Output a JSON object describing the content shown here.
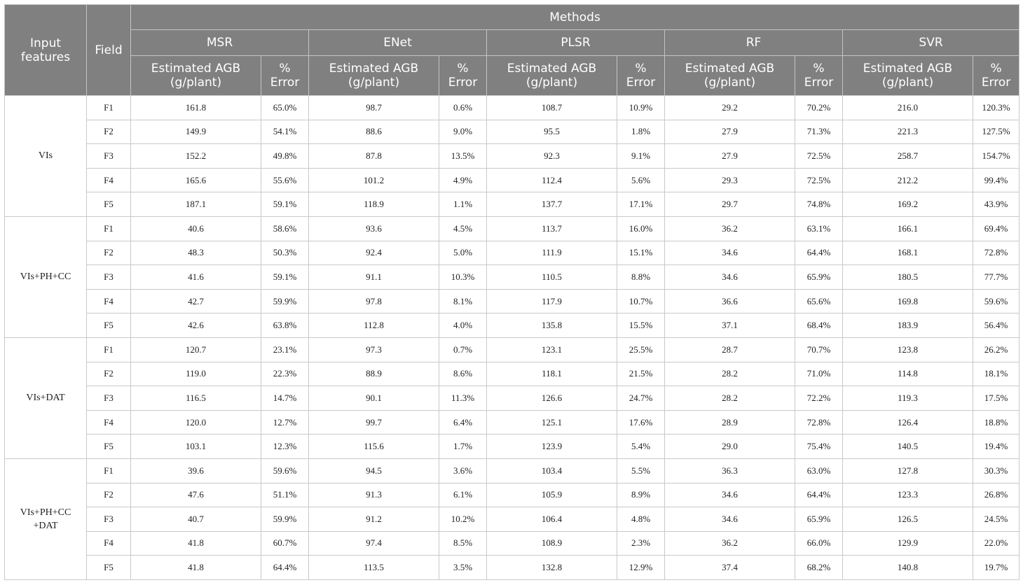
{
  "table": {
    "header": {
      "input_features": "Input\nfeatures",
      "field": "Field",
      "methods": "Methods",
      "method_names": [
        "MSR",
        "ENet",
        "PLSR",
        "RF",
        "SVR"
      ],
      "estimated_agb": "Estimated AGB\n(g/plant)",
      "pct_error": "%\nError"
    },
    "groups": [
      {
        "name": "VIs",
        "rows": [
          [
            "F1",
            "161.8",
            "65.0%",
            "98.7",
            "0.6%",
            "108.7",
            "10.9%",
            "29.2",
            "70.2%",
            "216.0",
            "120.3%"
          ],
          [
            "F2",
            "149.9",
            "54.1%",
            "88.6",
            "9.0%",
            "95.5",
            "1.8%",
            "27.9",
            "71.3%",
            "221.3",
            "127.5%"
          ],
          [
            "F3",
            "152.2",
            "49.8%",
            "87.8",
            "13.5%",
            "92.3",
            "9.1%",
            "27.9",
            "72.5%",
            "258.7",
            "154.7%"
          ],
          [
            "F4",
            "165.6",
            "55.6%",
            "101.2",
            "4.9%",
            "112.4",
            "5.6%",
            "29.3",
            "72.5%",
            "212.2",
            "99.4%"
          ],
          [
            "F5",
            "187.1",
            "59.1%",
            "118.9",
            "1.1%",
            "137.7",
            "17.1%",
            "29.7",
            "74.8%",
            "169.2",
            "43.9%"
          ]
        ]
      },
      {
        "name": "VIs+PH+CC",
        "rows": [
          [
            "F1",
            "40.6",
            "58.6%",
            "93.6",
            "4.5%",
            "113.7",
            "16.0%",
            "36.2",
            "63.1%",
            "166.1",
            "69.4%"
          ],
          [
            "F2",
            "48.3",
            "50.3%",
            "92.4",
            "5.0%",
            "111.9",
            "15.1%",
            "34.6",
            "64.4%",
            "168.1",
            "72.8%"
          ],
          [
            "F3",
            "41.6",
            "59.1%",
            "91.1",
            "10.3%",
            "110.5",
            "8.8%",
            "34.6",
            "65.9%",
            "180.5",
            "77.7%"
          ],
          [
            "F4",
            "42.7",
            "59.9%",
            "97.8",
            "8.1%",
            "117.9",
            "10.7%",
            "36.6",
            "65.6%",
            "169.8",
            "59.6%"
          ],
          [
            "F5",
            "42.6",
            "63.8%",
            "112.8",
            "4.0%",
            "135.8",
            "15.5%",
            "37.1",
            "68.4%",
            "183.9",
            "56.4%"
          ]
        ]
      },
      {
        "name": "VIs+DAT",
        "rows": [
          [
            "F1",
            "120.7",
            "23.1%",
            "97.3",
            "0.7%",
            "123.1",
            "25.5%",
            "28.7",
            "70.7%",
            "123.8",
            "26.2%"
          ],
          [
            "F2",
            "119.0",
            "22.3%",
            "88.9",
            "8.6%",
            "118.1",
            "21.5%",
            "28.2",
            "71.0%",
            "114.8",
            "18.1%"
          ],
          [
            "F3",
            "116.5",
            "14.7%",
            "90.1",
            "11.3%",
            "126.6",
            "24.7%",
            "28.2",
            "72.2%",
            "119.3",
            "17.5%"
          ],
          [
            "F4",
            "120.0",
            "12.7%",
            "99.7",
            "6.4%",
            "125.1",
            "17.6%",
            "28.9",
            "72.8%",
            "126.4",
            "18.8%"
          ],
          [
            "F5",
            "103.1",
            "12.3%",
            "115.6",
            "1.7%",
            "123.9",
            "5.4%",
            "29.0",
            "75.4%",
            "140.5",
            "19.4%"
          ]
        ]
      },
      {
        "name": "VIs+PH+CC\n+DAT",
        "rows": [
          [
            "F1",
            "39.6",
            "59.6%",
            "94.5",
            "3.6%",
            "103.4",
            "5.5%",
            "36.3",
            "63.0%",
            "127.8",
            "30.3%"
          ],
          [
            "F2",
            "47.6",
            "51.1%",
            "91.3",
            "6.1%",
            "105.9",
            "8.9%",
            "34.6",
            "64.4%",
            "123.3",
            "26.8%"
          ],
          [
            "F3",
            "40.7",
            "59.9%",
            "91.2",
            "10.2%",
            "106.4",
            "4.8%",
            "34.6",
            "65.9%",
            "126.5",
            "24.5%"
          ],
          [
            "F4",
            "41.8",
            "60.7%",
            "97.4",
            "8.5%",
            "108.9",
            "2.3%",
            "36.2",
            "66.0%",
            "129.9",
            "22.0%"
          ],
          [
            "F5",
            "41.8",
            "64.4%",
            "113.5",
            "3.5%",
            "132.8",
            "12.9%",
            "37.4",
            "68.2%",
            "140.8",
            "19.7%"
          ]
        ]
      }
    ]
  }
}
